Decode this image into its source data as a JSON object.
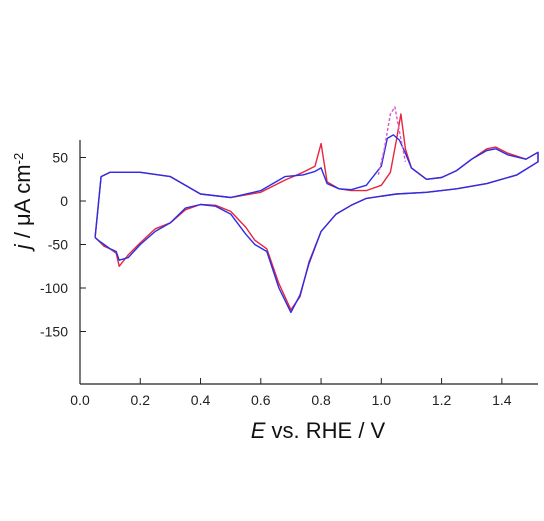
{
  "chart_data": {
    "type": "line",
    "title": "",
    "xlabel": {
      "italic": "E",
      "rest": " vs. RHE / V"
    },
    "ylabel": {
      "italic": "j",
      "rest": " / μA cm",
      "sup": "-2"
    },
    "xlim": [
      0.0,
      1.52
    ],
    "ylim": [
      -210,
      70
    ],
    "xticks": [
      0.0,
      0.2,
      0.4,
      0.6,
      0.8,
      1.0,
      1.2,
      1.4
    ],
    "xtick_labels": [
      "0.0",
      "0.2",
      "0.4",
      "0.6",
      "0.8",
      "1.0",
      "1.2",
      "1.4"
    ],
    "yticks": [
      50,
      0,
      -50,
      -100,
      -150
    ],
    "ytick_labels": [
      "50",
      "0",
      "-50",
      "-100",
      "-150"
    ],
    "grid": false,
    "legend": "none",
    "series": [
      {
        "color": "#e8253f",
        "style": "solid",
        "x": [
          0.05,
          0.07,
          0.1,
          0.2,
          0.3,
          0.4,
          0.5,
          0.6,
          0.68,
          0.74,
          0.78,
          0.8,
          0.82,
          0.86,
          0.9,
          0.95,
          1.0,
          1.03,
          1.05,
          1.065,
          1.08,
          1.1,
          1.15,
          1.2,
          1.25,
          1.3,
          1.35,
          1.38,
          1.42,
          1.48,
          1.52,
          1.52,
          1.45,
          1.35,
          1.25,
          1.15,
          1.05,
          0.95,
          0.9,
          0.85,
          0.8,
          0.76,
          0.73,
          0.7,
          0.66,
          0.62,
          0.58,
          0.55,
          0.5,
          0.45,
          0.4,
          0.35,
          0.3,
          0.25,
          0.2,
          0.16,
          0.13,
          0.12,
          0.1,
          0.08,
          0.06,
          0.05
        ],
        "y": [
          -42,
          28,
          33,
          33,
          28,
          8,
          4,
          10,
          24,
          33,
          40,
          66,
          22,
          14,
          12,
          12,
          18,
          33,
          70,
          100,
          60,
          38,
          25,
          27,
          35,
          48,
          60,
          62,
          55,
          48,
          56,
          45,
          30,
          20,
          14,
          10,
          8,
          3,
          -5,
          -15,
          -35,
          -70,
          -110,
          -125,
          -95,
          -55,
          -45,
          -30,
          -12,
          -5,
          -4,
          -10,
          -25,
          -32,
          -48,
          -62,
          -75,
          -60,
          -55,
          -52,
          -45,
          -42
        ]
      },
      {
        "color": "#2a2ee8",
        "style": "solid",
        "x": [
          0.05,
          0.07,
          0.1,
          0.2,
          0.3,
          0.4,
          0.5,
          0.6,
          0.68,
          0.74,
          0.78,
          0.8,
          0.82,
          0.86,
          0.9,
          0.95,
          1.0,
          1.02,
          1.04,
          1.06,
          1.08,
          1.1,
          1.15,
          1.2,
          1.25,
          1.3,
          1.35,
          1.38,
          1.42,
          1.48,
          1.52,
          1.52,
          1.45,
          1.35,
          1.25,
          1.15,
          1.05,
          0.95,
          0.9,
          0.85,
          0.8,
          0.76,
          0.73,
          0.7,
          0.66,
          0.62,
          0.58,
          0.55,
          0.5,
          0.45,
          0.4,
          0.35,
          0.3,
          0.25,
          0.2,
          0.16,
          0.13,
          0.12,
          0.1,
          0.08,
          0.06,
          0.05
        ],
        "y": [
          -42,
          28,
          33,
          33,
          28,
          8,
          4,
          12,
          28,
          30,
          34,
          38,
          20,
          14,
          13,
          18,
          40,
          72,
          76,
          70,
          55,
          38,
          25,
          27,
          35,
          48,
          58,
          60,
          53,
          48,
          56,
          45,
          30,
          20,
          14,
          10,
          8,
          3,
          -5,
          -15,
          -35,
          -72,
          -108,
          -128,
          -100,
          -58,
          -50,
          -38,
          -15,
          -6,
          -4,
          -8,
          -25,
          -35,
          -50,
          -65,
          -68,
          -58,
          -55,
          -50,
          -45,
          -42
        ]
      },
      {
        "color": "#d65ac8",
        "style": "dash",
        "x": [
          0.99,
          1.01,
          1.03,
          1.045,
          1.06,
          1.08
        ],
        "y": [
          30,
          60,
          100,
          108,
          80,
          45
        ]
      }
    ]
  }
}
